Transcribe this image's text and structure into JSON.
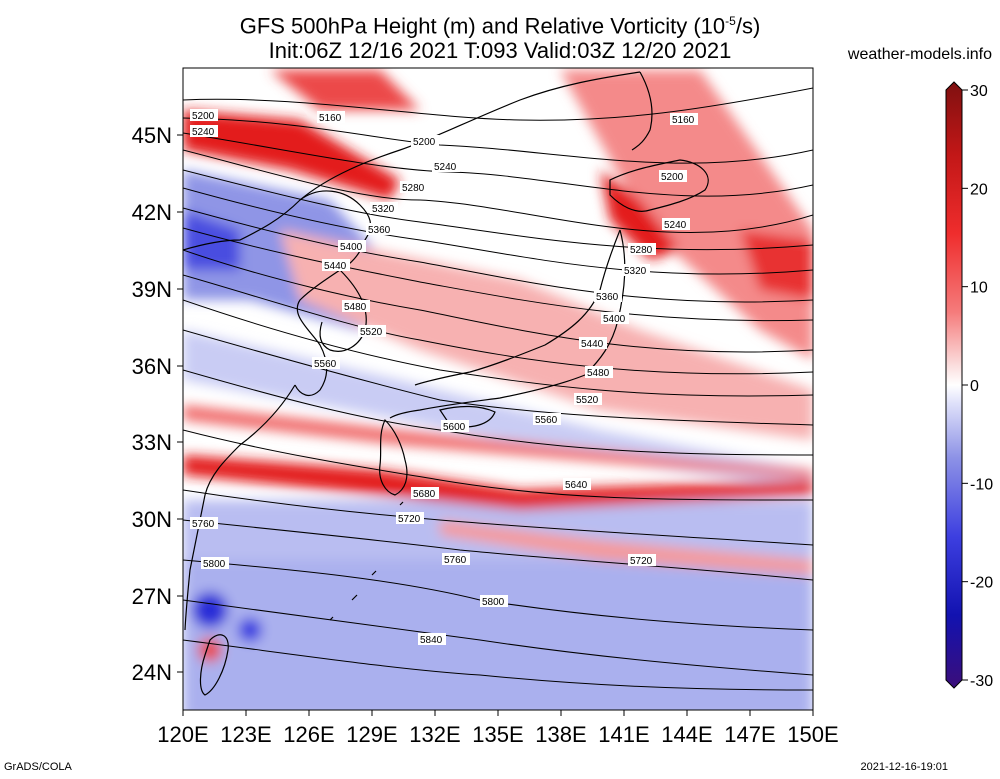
{
  "title_line1": "GFS 500hPa Height (m) and Relative Vorticity (10",
  "title_exp": "-5",
  "title_line1_end": "/s)",
  "title_line2": "Init:06Z 12/16 2021 T:093 Valid:03Z 12/20 2021",
  "site": "weather-models.info",
  "footer_left": "GrADS/COLA",
  "footer_right": "2021-12-16-19:01",
  "lat_labels": [
    "45N",
    "42N",
    "39N",
    "36N",
    "33N",
    "30N",
    "27N",
    "24N"
  ],
  "lon_labels": [
    "120E",
    "123E",
    "126E",
    "129E",
    "132E",
    "135E",
    "138E",
    "141E",
    "144E",
    "147E",
    "150E"
  ],
  "colorbar": {
    "labels": [
      "30",
      "20",
      "10",
      "0",
      "-10",
      "-20",
      "-30"
    ],
    "colors": [
      "#7f1010",
      "#c21717",
      "#ef2d2d",
      "#f57c7c",
      "#fbc4c4",
      "#ffffff",
      "#c4c8f4",
      "#8d92e6",
      "#3d3fe0",
      "#1212b0",
      "#3b0e7a"
    ]
  },
  "contours": [
    "5160",
    "5200",
    "5240",
    "5280",
    "5320",
    "5360",
    "5400",
    "5440",
    "5480",
    "5520",
    "5560",
    "5600",
    "5640",
    "5680",
    "5720",
    "5760",
    "5800",
    "5840"
  ],
  "colors": {
    "frame": "#000000",
    "pos_strong": "#e31a1c",
    "pos_weak": "#f7a6a6",
    "neg_strong": "#3a3be0",
    "neg_weak": "#c9cbf3"
  }
}
